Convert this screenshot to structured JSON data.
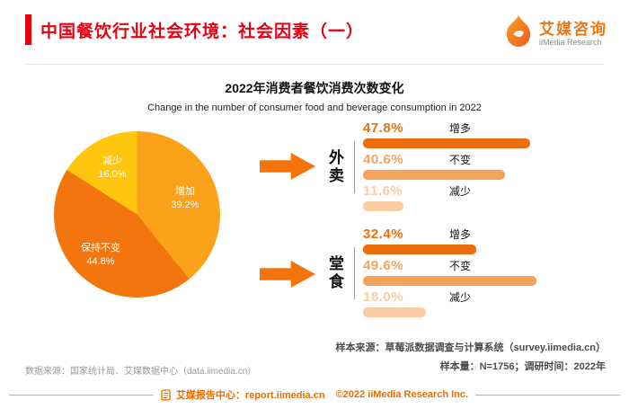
{
  "accent": {
    "red": "#E60012",
    "orange": "#EC6C00"
  },
  "header": {
    "title": "中国餐饮行业社会环境：社会因素（一）",
    "logo_cn": "艾媒咨询",
    "logo_en": "iiMedia Research"
  },
  "chart_subtitle": "Change in the number of consumer food and beverage consumption in 2022",
  "chart_data": {
    "title": "2022年消费者餐饮消费次数变化",
    "charts": [
      {
        "type": "pie",
        "slices": [
          {
            "label": "增加",
            "value": 39.2,
            "display": "39.2%",
            "color": "#FBA21B"
          },
          {
            "label": "保持不变",
            "value": 44.8,
            "display": "44.8%",
            "color": "#F3750D"
          },
          {
            "label": "减少",
            "value": 16.0,
            "display": "16.0%",
            "color": "#FFC60D"
          }
        ]
      },
      {
        "type": "bar",
        "group": "外卖",
        "categories": [
          "增多",
          "不变",
          "减少"
        ],
        "values": [
          47.8,
          40.6,
          11.6
        ],
        "displays": [
          "47.8%",
          "40.6%",
          "11.6%"
        ],
        "colors": [
          "#ED6D0D",
          "#F5A25B",
          "#FACDA4"
        ]
      },
      {
        "type": "bar",
        "group": "堂食",
        "categories": [
          "增多",
          "不变",
          "减少"
        ],
        "values": [
          32.4,
          49.6,
          18.0
        ],
        "displays": [
          "32.4%",
          "49.6%",
          "18.0%"
        ],
        "colors": [
          "#ED6D0D",
          "#F5A25B",
          "#FACDA4"
        ]
      }
    ]
  },
  "notes": {
    "data_source": "数据来源：国家统计局、艾媒数据中心（data.iimedia.cn）",
    "sample_source": "样本来源：草莓派数据调查与计算系统（survey.iimedia.cn）",
    "sample_info": "样本量：N=1756；调研时间：2022年"
  },
  "footer": {
    "report_center": "艾媒报告中心：report.iimedia.cn",
    "copyright": "©2022  iiMedia Research Inc."
  }
}
